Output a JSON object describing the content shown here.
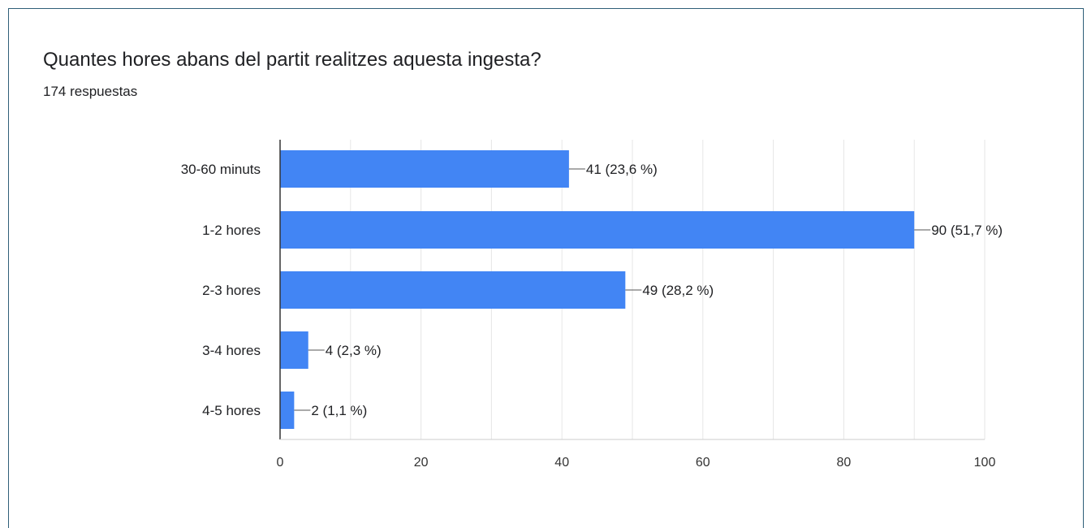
{
  "header": {
    "title": "Quantes hores abans del partit realitzes aquesta ingesta?",
    "responses": "174 respuestas"
  },
  "colors": {
    "bar": "#4285f4",
    "border": "#2f5f78",
    "grid": "#e6e6e6",
    "axis": "#333333"
  },
  "chart_data": {
    "type": "bar",
    "orientation": "horizontal",
    "title": "Quantes hores abans del partit realitzes aquesta ingesta?",
    "subtitle": "174 respuestas",
    "categories": [
      "30-60 minuts",
      "1-2 hores",
      "2-3 hores",
      "3-4 hores",
      "4-5 hores"
    ],
    "values": [
      41,
      90,
      49,
      4,
      2
    ],
    "data_labels": [
      "41 (23,6 %)",
      "90 (51,7 %)",
      "49 (28,2 %)",
      "4 (2,3 %)",
      "2 (1,1 %)"
    ],
    "xlim": [
      0,
      100
    ],
    "xticks": [
      "0",
      "20",
      "40",
      "60",
      "80",
      "100"
    ],
    "xlabel": "",
    "ylabel": "",
    "grid": true,
    "legend": "none"
  }
}
